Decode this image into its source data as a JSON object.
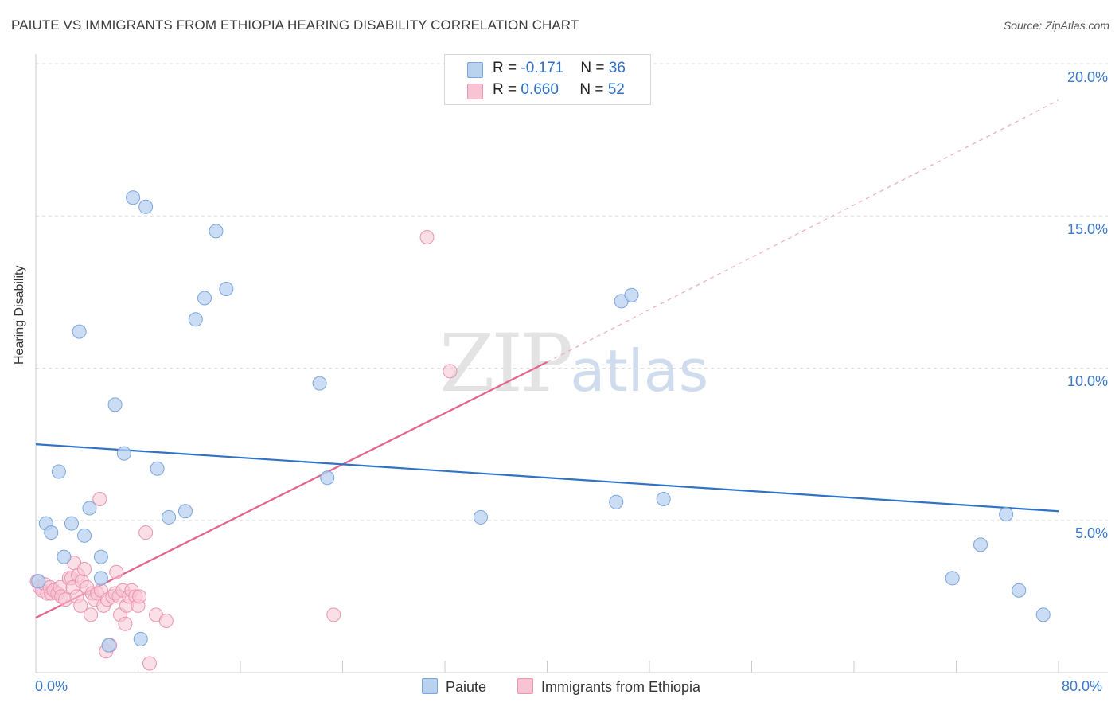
{
  "header": {
    "title": "PAIUTE VS IMMIGRANTS FROM ETHIOPIA HEARING DISABILITY CORRELATION CHART",
    "source": "Source: ZipAtlas.com"
  },
  "watermark": {
    "zip": "ZIP",
    "atlas": "atlas"
  },
  "legend": {
    "paiute": {
      "r_label": "R = ",
      "r_value": "-0.171",
      "n_label": "N = ",
      "n_value": "36"
    },
    "ethiopia": {
      "r_label": "R = ",
      "r_value": "0.660",
      "n_label": "N = ",
      "n_value": "52"
    }
  },
  "colors": {
    "paiute_fill": "#b9d2f0",
    "paiute_stroke": "#7aa6dc",
    "paiute_line": "#2f72c8",
    "ethiopia_fill": "#f7c4d3",
    "ethiopia_stroke": "#ec94b0",
    "ethiopia_line": "#e0648f",
    "grid": "#dddddd",
    "tick_text": "#3a78c9"
  },
  "chart_data": {
    "type": "scatter",
    "title": "PAIUTE VS IMMIGRANTS FROM ETHIOPIA HEARING DISABILITY CORRELATION CHART",
    "xlabel": "",
    "ylabel": "Hearing Disability",
    "xlim": [
      0,
      80
    ],
    "ylim": [
      0,
      20
    ],
    "x_tick_labels": [
      "0.0%",
      "80.0%"
    ],
    "y_ticks": [
      5,
      10,
      15,
      20
    ],
    "y_tick_labels": [
      "5.0%",
      "10.0%",
      "15.0%",
      "20.0%"
    ],
    "grid": "horizontal dashed",
    "legend_position": "top-center",
    "series": [
      {
        "name": "Paiute",
        "r": -0.171,
        "n": 36,
        "trend": {
          "x": [
            0,
            80
          ],
          "y": [
            7.5,
            5.3
          ],
          "style": "solid"
        },
        "points": [
          [
            0.2,
            3.0
          ],
          [
            0.8,
            4.9
          ],
          [
            1.2,
            4.6
          ],
          [
            1.8,
            6.6
          ],
          [
            2.2,
            3.8
          ],
          [
            2.8,
            4.9
          ],
          [
            3.4,
            11.2
          ],
          [
            3.8,
            4.5
          ],
          [
            4.2,
            5.4
          ],
          [
            5.1,
            3.8
          ],
          [
            5.1,
            3.1
          ],
          [
            5.7,
            0.9
          ],
          [
            6.2,
            8.8
          ],
          [
            6.9,
            7.2
          ],
          [
            7.6,
            15.6
          ],
          [
            8.2,
            1.1
          ],
          [
            8.6,
            15.3
          ],
          [
            9.5,
            6.7
          ],
          [
            10.4,
            5.1
          ],
          [
            11.7,
            5.3
          ],
          [
            12.5,
            11.6
          ],
          [
            13.2,
            12.3
          ],
          [
            14.1,
            14.5
          ],
          [
            14.9,
            12.6
          ],
          [
            22.2,
            9.5
          ],
          [
            22.8,
            6.4
          ],
          [
            34.8,
            5.1
          ],
          [
            45.4,
            5.6
          ],
          [
            45.8,
            12.2
          ],
          [
            46.6,
            12.4
          ],
          [
            49.1,
            5.7
          ],
          [
            71.7,
            3.1
          ],
          [
            73.9,
            4.2
          ],
          [
            75.9,
            5.2
          ],
          [
            76.9,
            2.7
          ],
          [
            78.8,
            1.9
          ]
        ]
      },
      {
        "name": "Immigrants from Ethiopia",
        "r": 0.66,
        "n": 52,
        "trend": {
          "x": [
            0,
            40,
            80
          ],
          "y": [
            1.8,
            10.2,
            18.8
          ],
          "solid_until_x": 40
        },
        "points": [
          [
            0.1,
            3.0
          ],
          [
            0.3,
            2.8
          ],
          [
            0.5,
            2.7
          ],
          [
            0.7,
            2.9
          ],
          [
            0.9,
            2.6
          ],
          [
            1.1,
            2.8
          ],
          [
            1.2,
            2.6
          ],
          [
            1.4,
            2.7
          ],
          [
            1.7,
            2.6
          ],
          [
            1.9,
            2.8
          ],
          [
            2.0,
            2.5
          ],
          [
            2.3,
            2.4
          ],
          [
            2.6,
            3.1
          ],
          [
            2.8,
            3.1
          ],
          [
            2.9,
            2.8
          ],
          [
            3.0,
            3.6
          ],
          [
            3.2,
            2.5
          ],
          [
            3.3,
            3.2
          ],
          [
            3.5,
            2.2
          ],
          [
            3.6,
            3.0
          ],
          [
            3.8,
            3.4
          ],
          [
            4.0,
            2.8
          ],
          [
            4.3,
            1.9
          ],
          [
            4.4,
            2.6
          ],
          [
            4.6,
            2.4
          ],
          [
            4.8,
            2.6
          ],
          [
            5.0,
            5.7
          ],
          [
            5.1,
            2.7
          ],
          [
            5.3,
            2.2
          ],
          [
            5.5,
            0.7
          ],
          [
            5.6,
            2.4
          ],
          [
            5.8,
            0.9
          ],
          [
            6.0,
            2.5
          ],
          [
            6.2,
            2.6
          ],
          [
            6.3,
            3.3
          ],
          [
            6.5,
            2.5
          ],
          [
            6.6,
            1.9
          ],
          [
            6.8,
            2.7
          ],
          [
            7.0,
            1.6
          ],
          [
            7.1,
            2.2
          ],
          [
            7.3,
            2.5
          ],
          [
            7.5,
            2.7
          ],
          [
            7.8,
            2.5
          ],
          [
            8.0,
            2.2
          ],
          [
            8.1,
            2.5
          ],
          [
            8.6,
            4.6
          ],
          [
            8.9,
            0.3
          ],
          [
            9.4,
            1.9
          ],
          [
            10.2,
            1.7
          ],
          [
            23.3,
            1.9
          ],
          [
            30.6,
            14.3
          ],
          [
            32.4,
            9.9
          ]
        ]
      }
    ]
  },
  "bottom_legend": {
    "paiute": "Paiute",
    "ethiopia": "Immigrants from Ethiopia"
  }
}
